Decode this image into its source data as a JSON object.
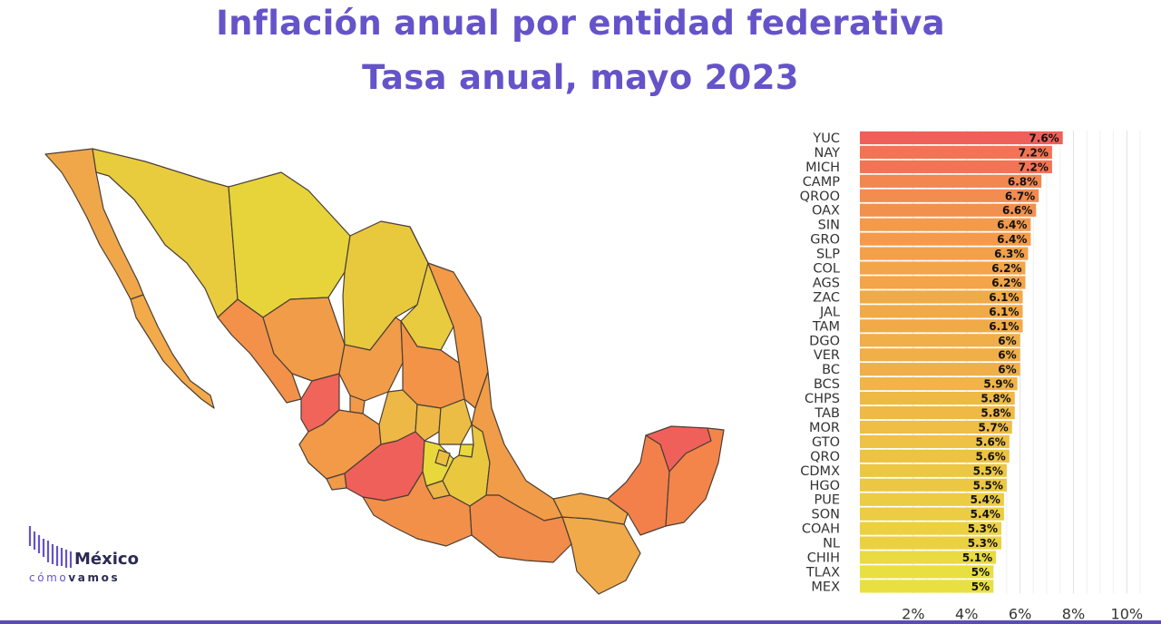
{
  "header": {
    "title": "Inflación anual por entidad federativa",
    "subtitle": "Tasa anual, mayo 2023"
  },
  "logo": {
    "word": "México",
    "sub_a": "cómo",
    "sub_b": "vamos",
    "icon": "bars-waveform-icon"
  },
  "colors": {
    "title": "#6553c9",
    "high": "#f0605a",
    "mid": "#f3a04a",
    "low": "#e8e040",
    "map_border": "#4a3f35"
  },
  "chart_data": {
    "type": "bar",
    "orientation": "horizontal",
    "categories": [
      "YUC",
      "NAY",
      "MICH",
      "CAMP",
      "QROO",
      "OAX",
      "SIN",
      "GRO",
      "SLP",
      "COL",
      "AGS",
      "ZAC",
      "JAL",
      "TAM",
      "DGO",
      "VER",
      "BC",
      "BCS",
      "CHPS",
      "TAB",
      "MOR",
      "GTO",
      "QRO",
      "CDMX",
      "HGO",
      "PUE",
      "SON",
      "COAH",
      "NL",
      "CHIH",
      "TLAX",
      "MEX"
    ],
    "values": [
      7.6,
      7.2,
      7.2,
      6.8,
      6.7,
      6.6,
      6.4,
      6.4,
      6.3,
      6.2,
      6.2,
      6.1,
      6.1,
      6.1,
      6,
      6,
      6,
      5.9,
      5.8,
      5.8,
      5.7,
      5.6,
      5.6,
      5.5,
      5.5,
      5.4,
      5.4,
      5.3,
      5.3,
      5.1,
      5,
      5
    ],
    "labels": [
      "7.6%",
      "7.2%",
      "7.2%",
      "6.8%",
      "6.7%",
      "6.6%",
      "6.4%",
      "6.4%",
      "6.3%",
      "6.2%",
      "6.2%",
      "6.1%",
      "6.1%",
      "6.1%",
      "6%",
      "6%",
      "6%",
      "5.9%",
      "5.8%",
      "5.8%",
      "5.7%",
      "5.6%",
      "5.6%",
      "5.5%",
      "5.5%",
      "5.4%",
      "5.4%",
      "5.3%",
      "5.3%",
      "5.1%",
      "5%",
      "5%"
    ],
    "xticks": [
      "2%",
      "4%",
      "6%",
      "8%",
      "10%"
    ],
    "xtick_values": [
      2,
      4,
      6,
      8,
      10
    ],
    "xlim": [
      0,
      10.6
    ],
    "grid": true
  }
}
